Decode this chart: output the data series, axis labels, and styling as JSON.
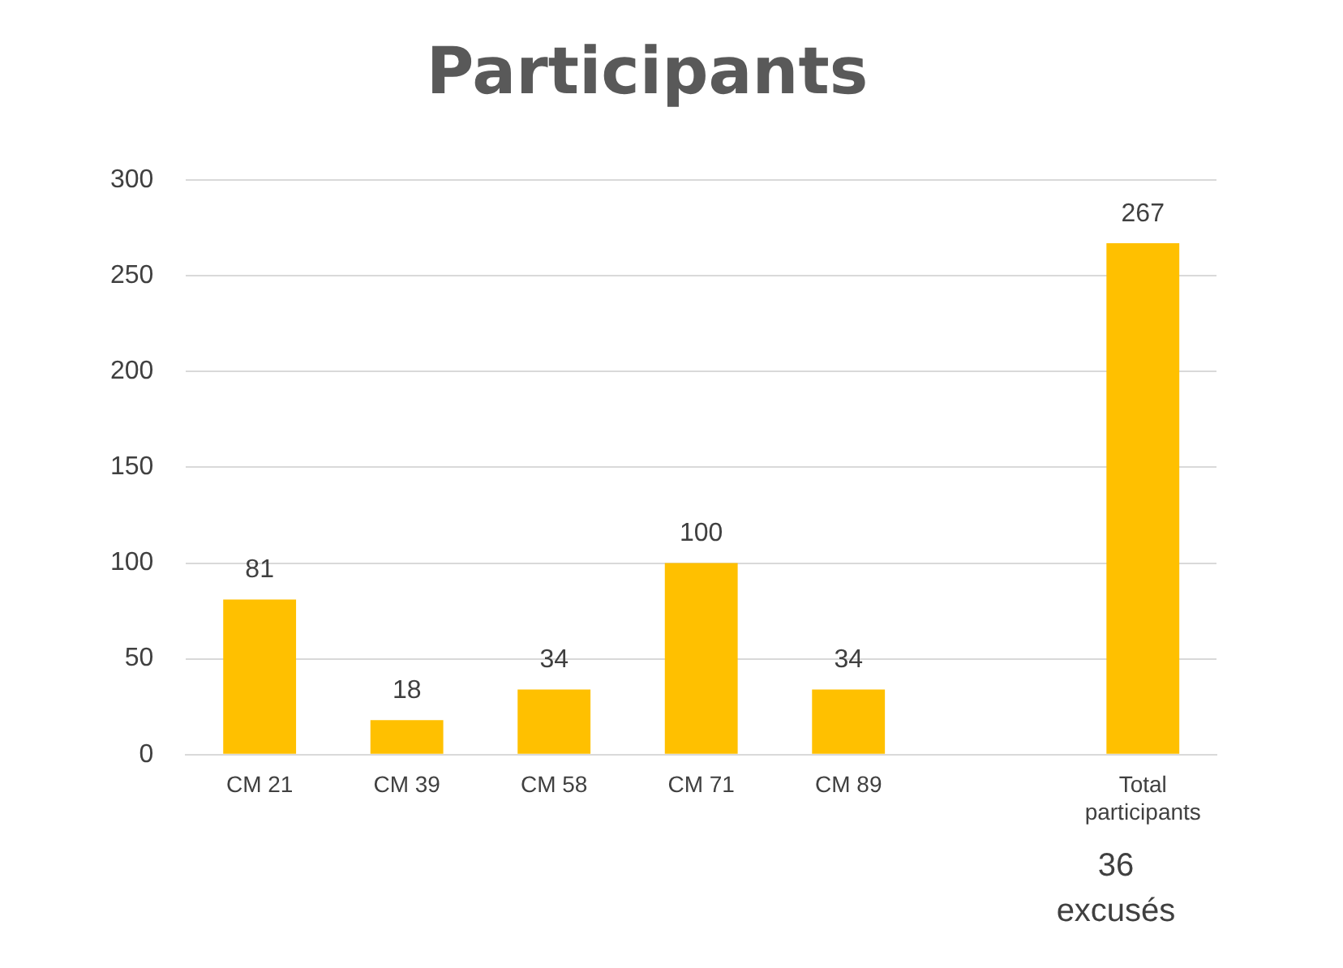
{
  "chart_data": {
    "type": "bar",
    "title": "Participants",
    "categories": [
      "CM 21",
      "CM 39",
      "CM 58",
      "CM 71",
      "CM 89",
      null,
      "Total participants"
    ],
    "values": [
      81,
      18,
      34,
      100,
      34,
      null,
      267
    ],
    "color": "#ffc000",
    "ylim": [
      0,
      300
    ],
    "yticks": [
      0,
      50,
      100,
      150,
      200,
      250,
      300
    ],
    "grid": "y",
    "legend": false,
    "data_labels": true,
    "annotations": [
      "36 excusés"
    ]
  }
}
